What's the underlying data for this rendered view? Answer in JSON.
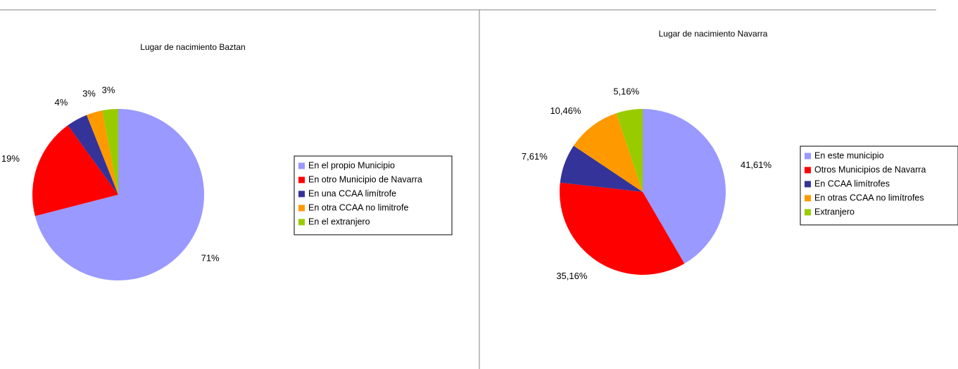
{
  "chart_data": [
    {
      "type": "pie",
      "title": "Lugar de nacimiento Baztan",
      "categories": [
        "En el propio Municipio",
        "En otro Municipio de Navarra",
        "En una CCAA limítrofe",
        "En otra CCAA no limitrofe",
        "En el extranjero"
      ],
      "values": [
        71,
        19,
        4,
        3,
        3
      ],
      "value_labels": [
        "71%",
        "19%",
        "4%",
        "3%",
        "3%"
      ],
      "colors": [
        "#9999ff",
        "#ff0000",
        "#333399",
        "#ff9900",
        "#99cc00"
      ],
      "legend": "right"
    },
    {
      "type": "pie",
      "title": "Lugar de nacimiento Navarra",
      "categories": [
        "En este municipio",
        "Otros Municipios de Navarra",
        "En CCAA limítrofes",
        "En otras CCAA no limítrofes",
        "Extranjero"
      ],
      "values": [
        41.61,
        35.16,
        7.61,
        10.46,
        5.16
      ],
      "value_labels": [
        "41,61%",
        "35,16%",
        "7,61%",
        "10,46%",
        "5,16%"
      ],
      "colors": [
        "#9999ff",
        "#ff0000",
        "#333399",
        "#ff9900",
        "#99cc00"
      ],
      "legend": "right"
    }
  ]
}
